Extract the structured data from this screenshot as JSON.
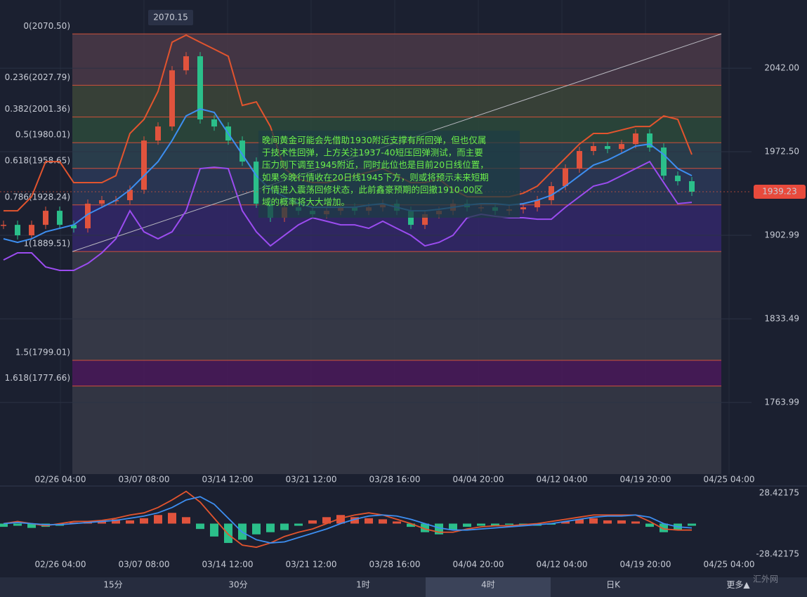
{
  "chart_data": {
    "type": "candlestick",
    "high": 2070.15,
    "last_price": 1939.23,
    "ylim": [
      1704.4,
      2098.7
    ],
    "yticks": [
      {
        "value": 2042,
        "label": "2042.00"
      },
      {
        "value": 1972.5,
        "label": "1972.50"
      },
      1902.99,
      1833.49,
      1763.99
    ],
    "x_labels": [
      "02/26 04:00",
      "03/07 08:00",
      "03/14 12:00",
      "03/21 12:00",
      "03/28 16:00",
      "04/04 20:00",
      "04/12 04:00",
      "04/19 20:00",
      "04/25 04:00"
    ],
    "fib_levels": [
      {
        "label": "0(2070.50)",
        "value": 2070.5,
        "color": "#4a3a48"
      },
      {
        "label": "0.236(2027.79)",
        "value": 2027.79,
        "color": "#3c4638"
      },
      {
        "label": "0.382(2001.36)",
        "value": 2001.36,
        "color": "#2b4a3b"
      },
      {
        "label": "0.5(1980.01)",
        "value": 1980.01,
        "color": "#2b4350"
      },
      {
        "label": "0.618(1958.65)",
        "value": 1958.65,
        "color": "#2b3958"
      },
      {
        "label": "0.786(1928.24)",
        "value": 1928.24,
        "color": "#33286a"
      },
      {
        "label": "1(1889.51)",
        "value": 1889.51,
        "color": "#393d4a"
      },
      {
        "label": "1.5(1799.01)",
        "value": 1799.01,
        "color": "#4a1a5a"
      },
      {
        "label": "1.618(1777.66)",
        "value": 1777.66,
        "color": "#363a46"
      }
    ],
    "trend_line": [
      1889.51,
      2070.5
    ],
    "series": [
      {
        "name": "close",
        "values": [
          1911.7,
          1903.0,
          1911.7,
          1923.4,
          1911.7,
          1908.8,
          1929.3,
          1932.2,
          1932.2,
          1940.9,
          1981.8,
          1993.5,
          2040.2,
          2051.9,
          1999.4,
          1993.5,
          1981.8,
          1964.3,
          1929.3,
          1917.6,
          1926.3,
          1923.4,
          1920.5,
          1923.4,
          1926.3,
          1923.4,
          1926.3,
          1929.3,
          1923.4,
          1911.7,
          1920.5,
          1923.4,
          1929.3,
          1926.3,
          1926.3,
          1923.4,
          1924.6,
          1926.3,
          1932.2,
          1943.9,
          1958.5,
          1973.1,
          1977.2,
          1974.8,
          1978.9,
          1987.7,
          1976.0,
          1952.6,
          1948.0,
          1939.23
        ]
      },
      {
        "name": "mid",
        "color": "#3d8ef0",
        "values": [
          1900.1,
          1897.1,
          1900.1,
          1905.9,
          1908.8,
          1911.7,
          1920.5,
          1926.3,
          1932.2,
          1940.9,
          1952.6,
          1964.3,
          1981.8,
          2002.3,
          2008.1,
          2005.2,
          1987.7,
          1970.2,
          1952.6,
          1940.9,
          1935.1,
          1929.3,
          1926.3,
          1926.3,
          1926.3,
          1926.3,
          1928.1,
          1929.3,
          1926.3,
          1923.4,
          1923.4,
          1924.6,
          1926.3,
          1928.1,
          1929.3,
          1929.3,
          1928.1,
          1929.3,
          1932.2,
          1936.3,
          1943.9,
          1952.6,
          1961.4,
          1965.5,
          1971.3,
          1977.2,
          1978.9,
          1970.2,
          1958.5,
          1952.6
        ]
      },
      {
        "name": "upper",
        "color": "#e2542e",
        "values": [
          1923.4,
          1923.4,
          1935.1,
          1964.3,
          1964.3,
          1946.8,
          1946.8,
          1946.8,
          1952.6,
          1987.7,
          1999.4,
          2022.7,
          2063.6,
          2069.5,
          2063.6,
          2057.8,
          2051.9,
          2011.0,
          2014.0,
          1993.5,
          1958.5,
          1949.7,
          1946.8,
          1946.8,
          1949.7,
          1952.6,
          1955.6,
          1958.5,
          1952.6,
          1946.8,
          1946.8,
          1949.7,
          1940.9,
          1935.1,
          1935.1,
          1935.1,
          1935.1,
          1938.0,
          1943.9,
          1955.6,
          1967.2,
          1978.9,
          1987.7,
          1987.7,
          1990.6,
          1993.5,
          1993.5,
          2002.3,
          1999.4,
          1970.2
        ]
      },
      {
        "name": "lower",
        "color": "#9b4cf0",
        "values": [
          1882.5,
          1888.4,
          1888.4,
          1876.7,
          1873.8,
          1873.8,
          1879.6,
          1888.4,
          1900.1,
          1923.4,
          1905.9,
          1900.1,
          1905.9,
          1923.4,
          1958.5,
          1959.6,
          1958.5,
          1923.4,
          1905.9,
          1894.2,
          1903.0,
          1911.7,
          1917.6,
          1914.7,
          1911.7,
          1911.7,
          1908.8,
          1914.7,
          1908.8,
          1903.0,
          1894.2,
          1897.1,
          1903.0,
          1917.6,
          1920.5,
          1918.8,
          1917.6,
          1917.6,
          1916.4,
          1916.4,
          1926.3,
          1935.1,
          1943.9,
          1946.8,
          1952.6,
          1958.5,
          1964.3,
          1946.8,
          1929.3,
          1930.4
        ]
      }
    ],
    "note": [
      "晚间黄金可能会先借助1930附近支撑有所回弹，但也仅属",
      "于技术性回弹，上方关注1937-40短压回弹测试，而主要",
      "压力则下调至1945附近，同时此位也是目前20日线位置，",
      "如果今晚行情收在20日线1945下方，则或将预示未来短期",
      "行情进入震荡回修状态，此前鑫豪预期的回撤1910-00区",
      "域的概率将大大增加。"
    ],
    "macd": {
      "ylim": [
        -28.42175,
        28.42175
      ],
      "yticks": [
        28.42175,
        -28.42175
      ],
      "histogram": [
        -3,
        -2,
        -4,
        -3,
        -2,
        1,
        2,
        3,
        4,
        3,
        5,
        8,
        10,
        6,
        -5,
        -12,
        -18,
        -15,
        -10,
        -8,
        -6,
        -2,
        3,
        6,
        8,
        6,
        5,
        4,
        2,
        -3,
        -8,
        -10,
        -6,
        -3,
        -2,
        -2,
        -1,
        -2,
        -2,
        -1,
        2,
        4,
        5,
        3,
        3,
        2,
        -3,
        -8,
        -6,
        -2
      ],
      "lines": [
        {
          "name": "DIF",
          "color": "#e2542e",
          "values": [
            0,
            2,
            0,
            -2,
            0,
            2,
            2,
            3,
            5,
            8,
            10,
            15,
            22,
            30,
            20,
            5,
            -10,
            -20,
            -22,
            -18,
            -12,
            -8,
            -5,
            0,
            5,
            8,
            10,
            8,
            4,
            0,
            -5,
            -8,
            -8,
            -5,
            -3,
            -2,
            -2,
            -1,
            0,
            2,
            4,
            6,
            8,
            8,
            8,
            8,
            2,
            -5,
            -6,
            -6
          ]
        },
        {
          "name": "DEA",
          "color": "#3d8ef0",
          "values": [
            0,
            1,
            0,
            -1,
            -1,
            0,
            1,
            2,
            3,
            5,
            7,
            10,
            15,
            22,
            25,
            18,
            5,
            -8,
            -15,
            -18,
            -17,
            -13,
            -9,
            -5,
            0,
            4,
            7,
            8,
            7,
            4,
            0,
            -4,
            -6,
            -6,
            -5,
            -4,
            -3,
            -2,
            -1,
            0,
            2,
            4,
            6,
            7,
            7,
            8,
            6,
            0,
            -3,
            -4
          ]
        }
      ]
    },
    "tabs": [
      "15分",
      "30分",
      "1时",
      "4时",
      "日K",
      "更多▲"
    ],
    "selected_tab": "4时",
    "watermark": "汇外网"
  }
}
